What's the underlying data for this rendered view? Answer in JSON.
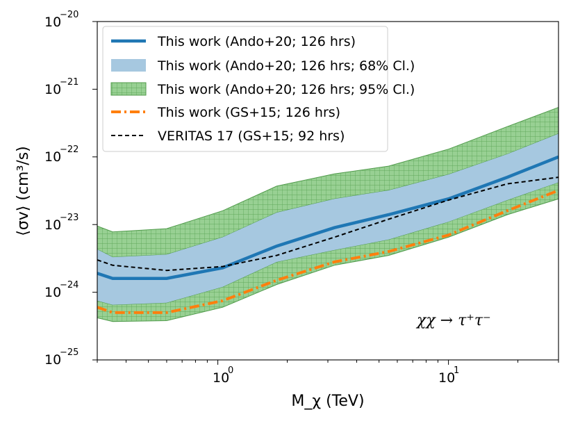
{
  "chart_data": {
    "type": "line",
    "xscale": "log",
    "yscale": "log",
    "xlim": [
      0.3,
      30
    ],
    "ylim": [
      1e-25,
      1e-20
    ],
    "xlabel": "M_χ (TeV)",
    "ylabel": "⟨σv⟩ (cm³/s)",
    "xtick_labels": [
      {
        "value": 1,
        "base": "10",
        "exp": "0"
      },
      {
        "value": 10,
        "base": "10",
        "exp": "1"
      }
    ],
    "ytick_labels": [
      {
        "value": 1e-25,
        "base": "10",
        "exp": "−25"
      },
      {
        "value": 1e-24,
        "base": "10",
        "exp": "−24"
      },
      {
        "value": 1e-23,
        "base": "10",
        "exp": "−23"
      },
      {
        "value": 1e-22,
        "base": "10",
        "exp": "−22"
      },
      {
        "value": 1e-21,
        "base": "10",
        "exp": "−21"
      },
      {
        "value": 1e-20,
        "base": "10",
        "exp": "−20"
      }
    ],
    "annotation": "χχ → τ⁺τ⁻",
    "legend_location": "upper-left",
    "series": [
      {
        "name": "This work (Ando+20; 126 hrs)",
        "kind": "line",
        "style": "solid",
        "color": "#1f77b4",
        "x": [
          0.3,
          0.35,
          0.6,
          1.05,
          1.8,
          3.2,
          5.5,
          10,
          18,
          30
        ],
        "y": [
          1.9e-24,
          1.6e-24,
          1.6e-24,
          2.3e-24,
          4.8e-24,
          9e-24,
          1.4e-23,
          2.4e-23,
          5e-23,
          1e-22
        ]
      },
      {
        "name": "This work (Ando+20; 126 hrs; 68% Cl.)",
        "kind": "band",
        "color": "#a6c8e0",
        "x": [
          0.3,
          0.35,
          0.6,
          1.05,
          1.8,
          3.2,
          5.5,
          10,
          18,
          30
        ],
        "lower": [
          7.5e-25,
          6.5e-25,
          7e-25,
          1.2e-24,
          2.8e-24,
          4.2e-24,
          6e-24,
          1.1e-23,
          2.3e-23,
          4.2e-23
        ],
        "upper": [
          4.3e-24,
          3.3e-24,
          3.6e-24,
          6.5e-24,
          1.5e-23,
          2.4e-23,
          3.2e-23,
          5.5e-23,
          1.1e-22,
          2.2e-22
        ]
      },
      {
        "name": "This work (Ando+20; 126 hrs; 95% Cl.)",
        "kind": "band",
        "color": "#98d093",
        "hatch": "grid",
        "x": [
          0.3,
          0.35,
          0.6,
          1.05,
          1.8,
          3.2,
          5.5,
          10,
          18,
          30
        ],
        "lower": [
          4.2e-25,
          3.7e-25,
          3.8e-25,
          6e-25,
          1.3e-24,
          2.5e-24,
          3.5e-24,
          6.5e-24,
          1.4e-23,
          2.4e-23
        ],
        "upper": [
          9.5e-24,
          7.8e-24,
          8.7e-24,
          1.6e-23,
          3.7e-23,
          5.6e-23,
          7.3e-23,
          1.3e-22,
          2.8e-22,
          5.4e-22
        ]
      },
      {
        "name": "This work (GS+15; 126 hrs)",
        "kind": "line",
        "style": "dashdot",
        "color": "#ff7f0e",
        "x": [
          0.3,
          0.35,
          0.6,
          1.05,
          1.8,
          3.2,
          5.5,
          10,
          18,
          30
        ],
        "y": [
          6e-25,
          5e-25,
          5e-25,
          7.5e-25,
          1.5e-24,
          2.8e-24,
          4e-24,
          7e-24,
          1.6e-23,
          3.2e-23
        ]
      },
      {
        "name": "VERITAS 17 (GS+15; 92 hrs)",
        "kind": "line",
        "style": "dashed",
        "color": "#000000",
        "x": [
          0.3,
          0.35,
          0.6,
          1.05,
          1.8,
          3.2,
          5.5,
          10,
          18,
          30
        ],
        "y": [
          3e-24,
          2.5e-24,
          2.1e-24,
          2.4e-24,
          3.5e-24,
          6.5e-24,
          1.2e-23,
          2.3e-23,
          4e-23,
          5e-23
        ]
      }
    ]
  }
}
